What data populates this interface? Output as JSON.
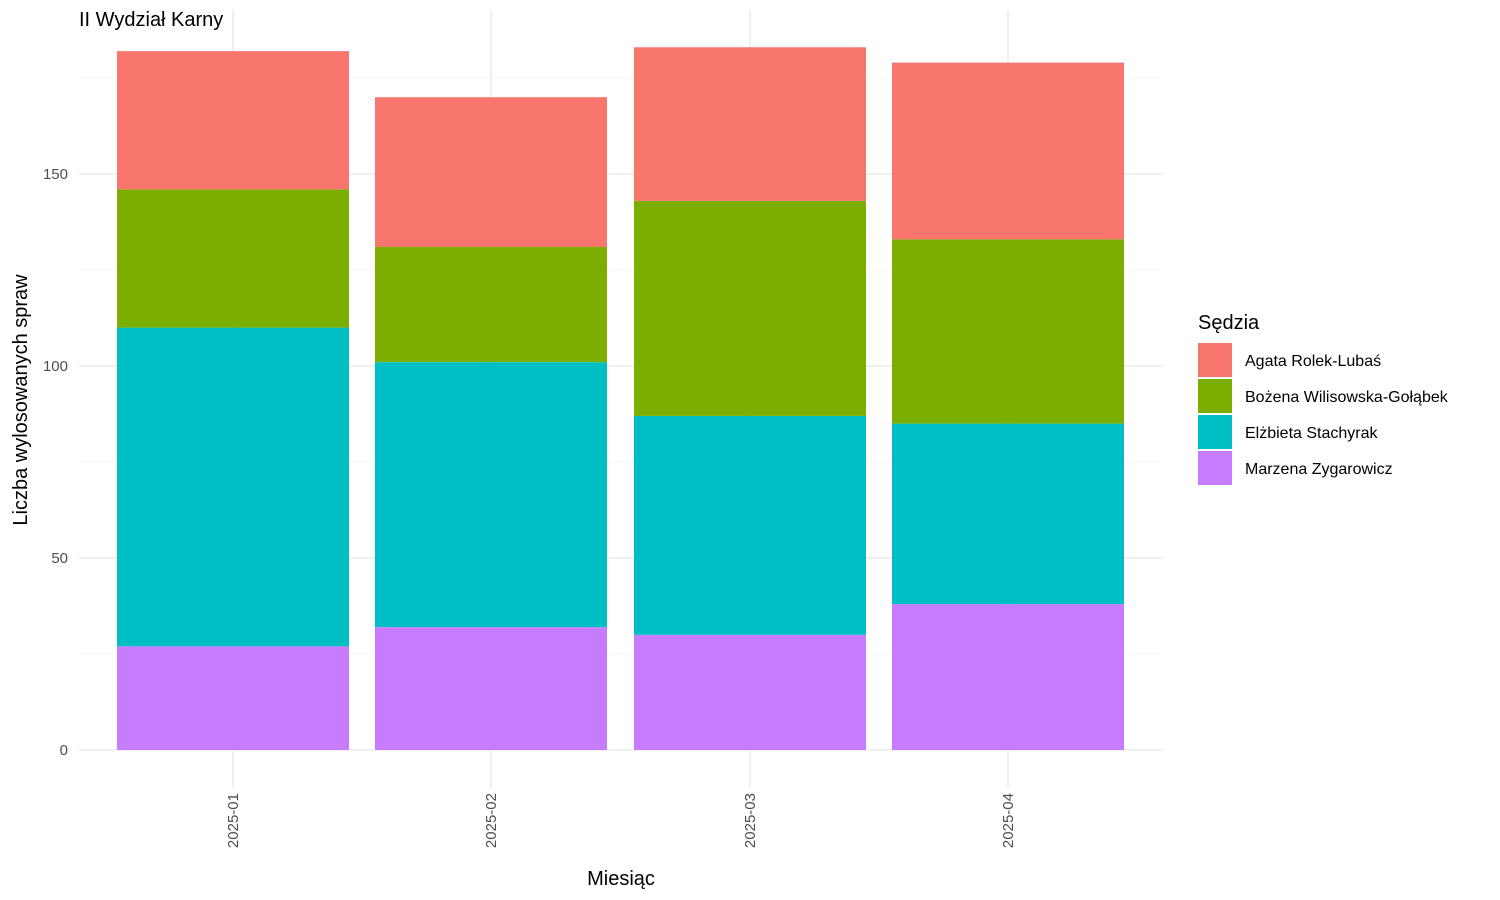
{
  "chart_data": {
    "type": "bar",
    "stacked": true,
    "title": "II Wydział Karny",
    "xlabel": "Miesiąc",
    "ylabel": "Liczba wylosowanych spraw",
    "ylim": [
      0,
      190
    ],
    "yticks": [
      0,
      50,
      100,
      150
    ],
    "grid": true,
    "legend_position": "right",
    "legend_title": "Sędzia",
    "categories": [
      "2025-01",
      "2025-02",
      "2025-03",
      "2025-04"
    ],
    "series": [
      {
        "name": "Agata Rolek-Lubaś",
        "color": "#F8766D",
        "values": [
          36,
          39,
          40,
          46
        ]
      },
      {
        "name": "Bożena Wilisowska-Gołąbek",
        "color": "#7CAE00",
        "values": [
          36,
          30,
          56,
          48
        ]
      },
      {
        "name": "Elżbieta Stachyrak",
        "color": "#00BFC4",
        "values": [
          83,
          69,
          57,
          47
        ]
      },
      {
        "name": "Marzena Zygarowicz",
        "color": "#C77CFF",
        "values": [
          27,
          32,
          30,
          38
        ]
      }
    ]
  }
}
